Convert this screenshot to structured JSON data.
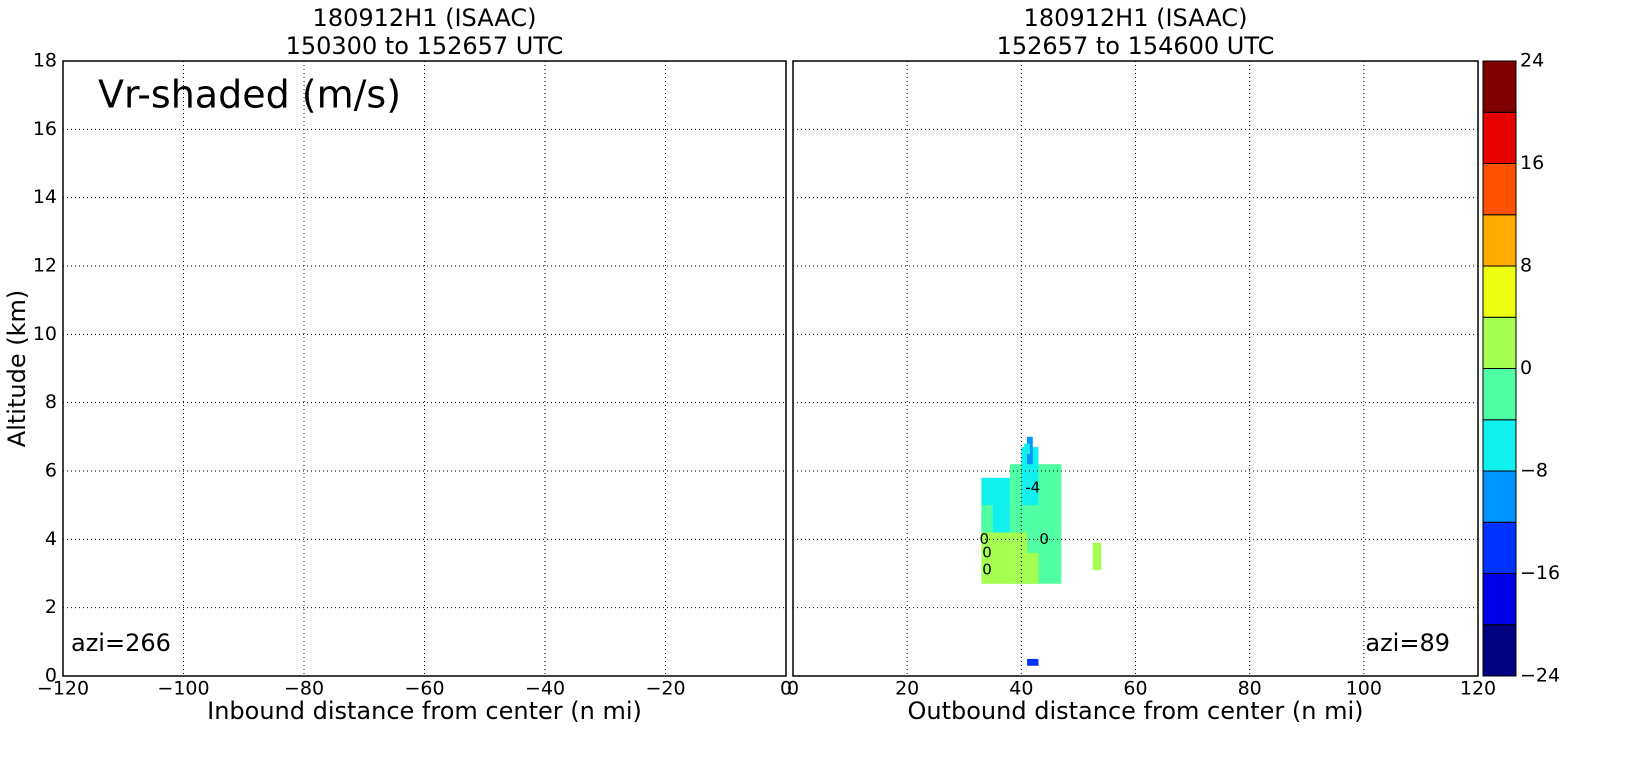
{
  "chart_data": [
    {
      "type": "heatmap",
      "title": "180912H1 (ISAAC)",
      "subtitle": "150300 to 152657 UTC",
      "xlabel": "Inbound distance from center (n mi)",
      "ylabel": "Altitude (km)",
      "xlim": [
        -120,
        0
      ],
      "ylim": [
        0,
        18
      ],
      "xticks": [
        {
          "value": -120,
          "label": "−120"
        },
        {
          "value": -100,
          "label": "−100"
        },
        {
          "value": -80,
          "label": "−80"
        },
        {
          "value": -60,
          "label": "−60"
        },
        {
          "value": -40,
          "label": "−40"
        },
        {
          "value": -20,
          "label": "−20"
        },
        0
      ],
      "yticks": [
        0,
        2,
        4,
        6,
        8,
        10,
        12,
        14,
        16,
        18
      ],
      "show_ytick_labels": true,
      "grid": true,
      "annotations": [
        {
          "text": "Vr-shaded (m/s)",
          "corner": "upper left"
        },
        {
          "text": "azi=266",
          "corner": "lower left"
        }
      ],
      "cells": [],
      "contour_labels": []
    },
    {
      "type": "heatmap",
      "title": "180912H1 (ISAAC)",
      "subtitle": "152657 to 154600 UTC",
      "xlabel": "Outbound distance from center (n mi)",
      "xlim": [
        0,
        120
      ],
      "ylim": [
        0,
        18
      ],
      "xticks": [
        0,
        20,
        40,
        60,
        80,
        100,
        120
      ],
      "yticks": [
        0,
        2,
        4,
        6,
        8,
        10,
        12,
        14,
        16,
        18
      ],
      "show_ytick_labels": false,
      "grid": true,
      "annotations": [
        {
          "text": "azi=89",
          "corner": "lower right"
        }
      ],
      "cells": [
        {
          "x": [
            38,
            47
          ],
          "y": [
            2.7,
            6.2
          ],
          "value": -2
        },
        {
          "x": [
            33,
            38
          ],
          "y": [
            4.2,
            5.8
          ],
          "value": -6
        },
        {
          "x": [
            33,
            35
          ],
          "y": [
            4.2,
            5.0
          ],
          "value": -2
        },
        {
          "x": [
            40,
            43
          ],
          "y": [
            5.0,
            6.7
          ],
          "value": -6
        },
        {
          "x": [
            33,
            41
          ],
          "y": [
            2.7,
            4.2
          ],
          "value": 2
        },
        {
          "x": [
            41,
            43
          ],
          "y": [
            2.7,
            3.6
          ],
          "value": 2
        },
        {
          "x": [
            52.5,
            54
          ],
          "y": [
            3.1,
            3.9
          ],
          "value": 2
        },
        {
          "x": [
            41,
            42
          ],
          "y": [
            6.2,
            7.0
          ],
          "value": -10
        },
        {
          "x": [
            40.5,
            41.5
          ],
          "y": [
            6.5,
            6.8
          ],
          "value": -6
        },
        {
          "x": [
            41,
            43
          ],
          "y": [
            0.3,
            0.5
          ],
          "value": -14
        }
      ],
      "contour_labels": [
        {
          "text": "0",
          "x": 33.5,
          "y": 4.0
        },
        {
          "text": "0",
          "x": 34,
          "y": 3.6
        },
        {
          "text": "0",
          "x": 34,
          "y": 3.1
        },
        {
          "text": "0",
          "x": 44,
          "y": 4.0
        },
        {
          "text": "-4",
          "x": 42,
          "y": 5.5
        }
      ],
      "colorbar": {
        "levels": [
          -24,
          -20,
          -16,
          -12,
          -8,
          -4,
          0,
          4,
          8,
          12,
          16,
          20,
          24
        ],
        "colors": [
          "#000080",
          "#0000e6",
          "#0033ff",
          "#0094ff",
          "#10f0ec",
          "#50ffa4",
          "#a4ff50",
          "#ecff10",
          "#ffac00",
          "#ff5200",
          "#e60000",
          "#800000"
        ],
        "ticks": [
          {
            "value": -24,
            "label": "−24"
          },
          {
            "value": -16,
            "label": "−16"
          },
          {
            "value": -8,
            "label": "−8"
          },
          0,
          8,
          16,
          24
        ]
      }
    }
  ]
}
